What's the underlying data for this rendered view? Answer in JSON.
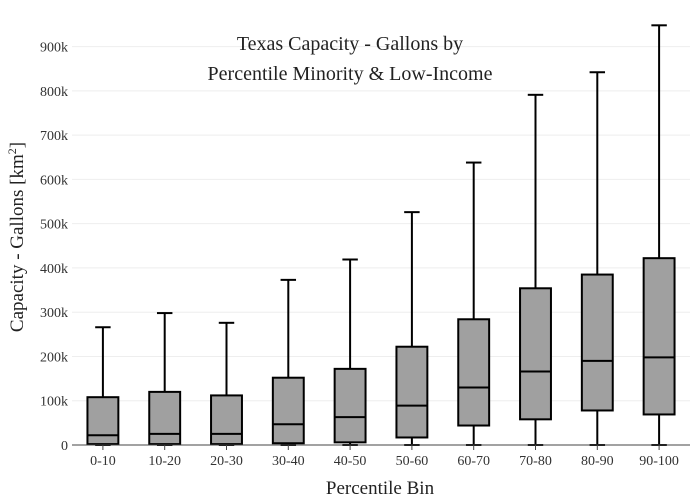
{
  "chart_data": {
    "type": "box",
    "title": "Texas Capacity - Gallons by",
    "subtitle": "Percentile Minority & Low-Income",
    "xlabel": "Percentile Bin",
    "ylabel": "Capacity - Gallons  [km",
    "ylabel_superscript": "2",
    "ylabel_suffix": "]",
    "ylim": [
      0,
      960000
    ],
    "yticks": [
      0,
      100000,
      200000,
      300000,
      400000,
      500000,
      600000,
      700000,
      800000,
      900000
    ],
    "ytick_labels": [
      "0",
      "100k",
      "200k",
      "300k",
      "400k",
      "500k",
      "600k",
      "700k",
      "800k",
      "900k"
    ],
    "grid": true,
    "legend": "none",
    "colors": {
      "box_fill": "#a0a0a0",
      "box_stroke": "#000000",
      "grid": "#eeeeee",
      "axis": "#444444"
    },
    "categories": [
      "0-10",
      "10-20",
      "20-30",
      "30-40",
      "40-50",
      "50-60",
      "60-70",
      "70-80",
      "80-90",
      "90-100"
    ],
    "boxes": [
      {
        "category": "0-10",
        "min": 0,
        "q1": 2000,
        "median": 22000,
        "q3": 108000,
        "max": 266000
      },
      {
        "category": "10-20",
        "min": 0,
        "q1": 2000,
        "median": 25000,
        "q3": 120000,
        "max": 298000
      },
      {
        "category": "20-30",
        "min": 0,
        "q1": 2000,
        "median": 25000,
        "q3": 112000,
        "max": 276000
      },
      {
        "category": "30-40",
        "min": 0,
        "q1": 4000,
        "median": 47000,
        "q3": 152000,
        "max": 373000
      },
      {
        "category": "40-50",
        "min": 0,
        "q1": 6000,
        "median": 63000,
        "q3": 172000,
        "max": 419000
      },
      {
        "category": "50-60",
        "min": 0,
        "q1": 17000,
        "median": 89000,
        "q3": 222000,
        "max": 526000
      },
      {
        "category": "60-70",
        "min": 0,
        "q1": 44000,
        "median": 130000,
        "q3": 284000,
        "max": 638000
      },
      {
        "category": "70-80",
        "min": 0,
        "q1": 58000,
        "median": 166000,
        "q3": 354000,
        "max": 791000
      },
      {
        "category": "80-90",
        "min": 0,
        "q1": 78000,
        "median": 190000,
        "q3": 385000,
        "max": 842000
      },
      {
        "category": "90-100",
        "min": 0,
        "q1": 69000,
        "median": 198000,
        "q3": 422000,
        "max": 948000
      }
    ]
  }
}
